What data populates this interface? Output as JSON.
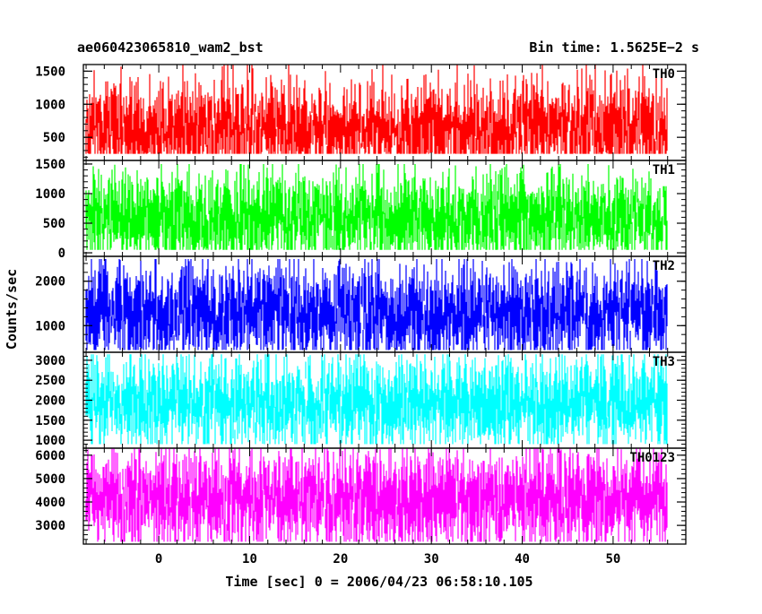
{
  "header": {
    "left_title": "ae060423065810_wam2_bst",
    "right_title": "Bin time: 1.5625E−2 s"
  },
  "chart_data": {
    "type": "line",
    "xlabel": "Time [sec] 0 = 2006/04/23 06:58:10.105",
    "ylabel": "Counts/sec",
    "xlim": [
      -8.3,
      58.0
    ],
    "data_x_range": [
      -8.0,
      56.0
    ],
    "bin_time_s": 0.015625,
    "x_ticks": [
      0,
      10,
      20,
      30,
      40,
      50
    ],
    "x_tick_labels": [
      "0",
      "10",
      "20",
      "30",
      "40",
      "50"
    ],
    "shared_x": true,
    "grid": false,
    "panels": [
      {
        "label": "TH0",
        "color": "#ff0000",
        "ylim": [
          150,
          1600
        ],
        "y_ticks": [
          500,
          1000,
          1500
        ],
        "y_tick_labels": [
          "500",
          "1000",
          "1500"
        ],
        "mean": 650,
        "min": 250,
        "max": 1600
      },
      {
        "label": "TH1",
        "color": "#00ff00",
        "ylim": [
          -60,
          1560
        ],
        "y_ticks": [
          0,
          500,
          1000,
          1500
        ],
        "y_tick_labels": [
          "0",
          "500",
          "1000",
          "1500"
        ],
        "mean": 600,
        "min": 50,
        "max": 1500
      },
      {
        "label": "TH2",
        "color": "#0000ff",
        "ylim": [
          400,
          2560
        ],
        "y_ticks": [
          1000,
          2000
        ],
        "y_tick_labels": [
          "1000",
          "2000"
        ],
        "mean": 1300,
        "min": 450,
        "max": 2500
      },
      {
        "label": "TH3",
        "color": "#00ffff",
        "ylim": [
          800,
          3200
        ],
        "y_ticks": [
          1000,
          1500,
          2000,
          2500,
          3000
        ],
        "y_tick_labels": [
          "1000",
          "1500",
          "2000",
          "2500",
          "3000"
        ],
        "mean": 1950,
        "min": 900,
        "max": 3150
      },
      {
        "label": "TH0123",
        "color": "#ff00ff",
        "ylim": [
          2200,
          6300
        ],
        "y_ticks": [
          3000,
          4000,
          5000,
          6000
        ],
        "y_tick_labels": [
          "3000",
          "4000",
          "5000",
          "6000"
        ],
        "mean": 4150,
        "min": 2300,
        "max": 6300
      }
    ]
  }
}
